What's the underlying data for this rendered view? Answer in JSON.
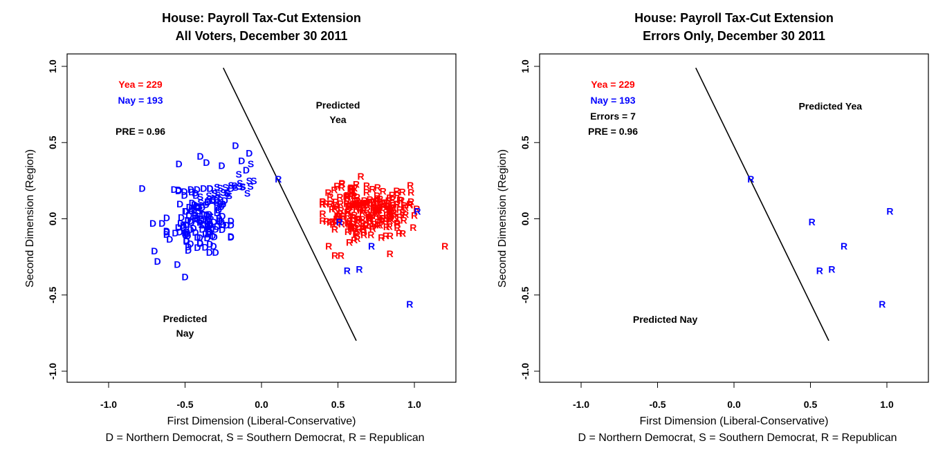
{
  "chart_data": [
    {
      "type": "scatter",
      "title": "House: Payroll Tax-Cut Extension",
      "subtitle": "All Voters, December 30 2011",
      "xlabel": "First Dimension (Liberal-Conservative)",
      "xlabel2": "D = Northern Democrat, S = Southern Democrat, R = Republican",
      "ylabel": "Second Dimension (Region)",
      "xlim": [
        -1.25,
        1.27
      ],
      "ylim": [
        -1.08,
        1.07
      ],
      "xticks": [
        "-1.0",
        "-0.5",
        "0.0",
        "0.5",
        "1.0"
      ],
      "xtick_values": [
        -1.0,
        -0.5,
        0.0,
        0.5,
        1.0
      ],
      "yticks": [
        "-1.0",
        "-0.5",
        "0.0",
        "0.5",
        "1.0"
      ],
      "ytick_values": [
        -1.0,
        -0.5,
        0.0,
        0.5,
        1.0
      ],
      "grid": false,
      "stats": [
        {
          "label": "Yea =  229",
          "color": "#ff0000"
        },
        {
          "label": "Nay =  193",
          "color": "#0000ff"
        },
        {
          "label": "",
          "color": "#000000"
        },
        {
          "label": "PRE =  0.96",
          "color": "#000000"
        }
      ],
      "region_labels": [
        {
          "lines": [
            "Predicted",
            "Yea"
          ],
          "x": 0.5,
          "y": 0.7
        },
        {
          "lines": [
            "Predicted",
            "Nay"
          ],
          "x": -0.5,
          "y": -0.7
        }
      ],
      "cutting_line": {
        "x1": -0.25,
        "y1": 0.99,
        "x2": 0.62,
        "y2": -0.8
      },
      "colors": {
        "yea": "#ff0000",
        "nay": "#0000ff"
      },
      "notable_points": [
        {
          "label": "D",
          "vote": "nay",
          "x": -0.78,
          "y": 0.2
        },
        {
          "label": "D",
          "vote": "nay",
          "x": -0.54,
          "y": 0.36
        },
        {
          "label": "D",
          "vote": "nay",
          "x": -0.4,
          "y": 0.41
        },
        {
          "label": "D",
          "vote": "nay",
          "x": -0.17,
          "y": 0.48
        },
        {
          "label": "D",
          "vote": "nay",
          "x": -0.08,
          "y": 0.43
        },
        {
          "label": "D",
          "vote": "nay",
          "x": -0.13,
          "y": 0.38
        },
        {
          "label": "S",
          "vote": "nay",
          "x": -0.07,
          "y": 0.36
        },
        {
          "label": "D",
          "vote": "nay",
          "x": -0.1,
          "y": 0.32
        },
        {
          "label": "S",
          "vote": "nay",
          "x": -0.08,
          "y": 0.25
        },
        {
          "label": "S",
          "vote": "nay",
          "x": -0.05,
          "y": 0.25
        },
        {
          "label": "D",
          "vote": "nay",
          "x": -0.26,
          "y": 0.35
        },
        {
          "label": "D",
          "vote": "nay",
          "x": -0.36,
          "y": 0.37
        },
        {
          "label": "D",
          "vote": "nay",
          "x": -0.71,
          "y": -0.03
        },
        {
          "label": "D",
          "vote": "nay",
          "x": -0.65,
          "y": -0.03
        },
        {
          "label": "D",
          "vote": "nay",
          "x": -0.7,
          "y": -0.21
        },
        {
          "label": "D",
          "vote": "nay",
          "x": -0.68,
          "y": -0.28
        },
        {
          "label": "D",
          "vote": "nay",
          "x": -0.5,
          "y": -0.38
        },
        {
          "label": "D",
          "vote": "nay",
          "x": -0.55,
          "y": -0.3
        },
        {
          "label": "D",
          "vote": "nay",
          "x": -0.34,
          "y": -0.22
        },
        {
          "label": "D",
          "vote": "nay",
          "x": -0.3,
          "y": -0.22
        },
        {
          "label": "D",
          "vote": "nay",
          "x": -0.2,
          "y": -0.04
        },
        {
          "label": "D",
          "vote": "nay",
          "x": -0.23,
          "y": -0.04
        },
        {
          "label": "R",
          "vote": "nay",
          "x": 0.11,
          "y": 0.26
        },
        {
          "label": "R",
          "vote": "nay",
          "x": 0.51,
          "y": -0.02
        },
        {
          "label": "R",
          "vote": "nay",
          "x": 1.02,
          "y": 0.05
        },
        {
          "label": "R",
          "vote": "nay",
          "x": 0.72,
          "y": -0.18
        },
        {
          "label": "R",
          "vote": "nay",
          "x": 0.56,
          "y": -0.34
        },
        {
          "label": "R",
          "vote": "nay",
          "x": 0.64,
          "y": -0.33
        },
        {
          "label": "R",
          "vote": "nay",
          "x": 0.97,
          "y": -0.56
        },
        {
          "label": "R",
          "vote": "yea",
          "x": 1.2,
          "y": -0.18
        },
        {
          "label": "R",
          "vote": "yea",
          "x": 0.84,
          "y": -0.23
        },
        {
          "label": "R",
          "vote": "yea",
          "x": 0.52,
          "y": -0.24
        },
        {
          "label": "R",
          "vote": "yea",
          "x": 0.48,
          "y": -0.24
        },
        {
          "label": "R",
          "vote": "yea",
          "x": 0.44,
          "y": -0.18
        },
        {
          "label": "R",
          "vote": "yea",
          "x": 0.97,
          "y": 0.09
        }
      ],
      "clusters": [
        {
          "label": "D",
          "vote": "nay",
          "n": 120,
          "cx": -0.4,
          "cy": 0.0,
          "sx": 0.1,
          "sy": 0.12,
          "seed": 11
        },
        {
          "label": "S",
          "vote": "nay",
          "n": 36,
          "cx": -0.3,
          "cy": 0.17,
          "sx": 0.08,
          "sy": 0.08,
          "seed": 23
        },
        {
          "label": "R",
          "vote": "yea",
          "n": 222,
          "cx": 0.68,
          "cy": 0.06,
          "sx": 0.14,
          "sy": 0.09,
          "seed": 37
        }
      ]
    },
    {
      "type": "scatter",
      "title": "House: Payroll Tax-Cut Extension",
      "subtitle": "Errors Only, December 30 2011",
      "xlabel": "First Dimension (Liberal-Conservative)",
      "xlabel2": "D = Northern Democrat, S = Southern Democrat, R = Republican",
      "ylabel": "Second Dimension (Region)",
      "xlim": [
        -1.25,
        1.27
      ],
      "ylim": [
        -1.08,
        1.07
      ],
      "xticks": [
        "-1.0",
        "-0.5",
        "0.0",
        "0.5",
        "1.0"
      ],
      "xtick_values": [
        -1.0,
        -0.5,
        0.0,
        0.5,
        1.0
      ],
      "yticks": [
        "-1.0",
        "-0.5",
        "0.0",
        "0.5",
        "1.0"
      ],
      "ytick_values": [
        -1.0,
        -0.5,
        0.0,
        0.5,
        1.0
      ],
      "grid": false,
      "stats": [
        {
          "label": "Yea =  229",
          "color": "#ff0000"
        },
        {
          "label": "Nay =  193",
          "color": "#0000ff"
        },
        {
          "label": "Errors =  7",
          "color": "#000000"
        },
        {
          "label": "PRE =  0.96",
          "color": "#000000"
        }
      ],
      "region_labels": [
        {
          "lines": [
            "Predicted Yea"
          ],
          "x": 0.63,
          "y": 0.74
        },
        {
          "lines": [
            "Predicted Nay"
          ],
          "x": -0.45,
          "y": -0.66
        }
      ],
      "cutting_line": {
        "x1": -0.25,
        "y1": 0.99,
        "x2": 0.62,
        "y2": -0.8
      },
      "colors": {
        "yea": "#ff0000",
        "nay": "#0000ff"
      },
      "notable_points": [
        {
          "label": "R",
          "vote": "nay",
          "x": 0.11,
          "y": 0.26
        },
        {
          "label": "R",
          "vote": "nay",
          "x": 0.51,
          "y": -0.02
        },
        {
          "label": "R",
          "vote": "nay",
          "x": 1.02,
          "y": 0.05
        },
        {
          "label": "R",
          "vote": "nay",
          "x": 0.72,
          "y": -0.18
        },
        {
          "label": "R",
          "vote": "nay",
          "x": 0.56,
          "y": -0.34
        },
        {
          "label": "R",
          "vote": "nay",
          "x": 0.64,
          "y": -0.33
        },
        {
          "label": "R",
          "vote": "nay",
          "x": 0.97,
          "y": -0.56
        }
      ],
      "clusters": []
    }
  ]
}
